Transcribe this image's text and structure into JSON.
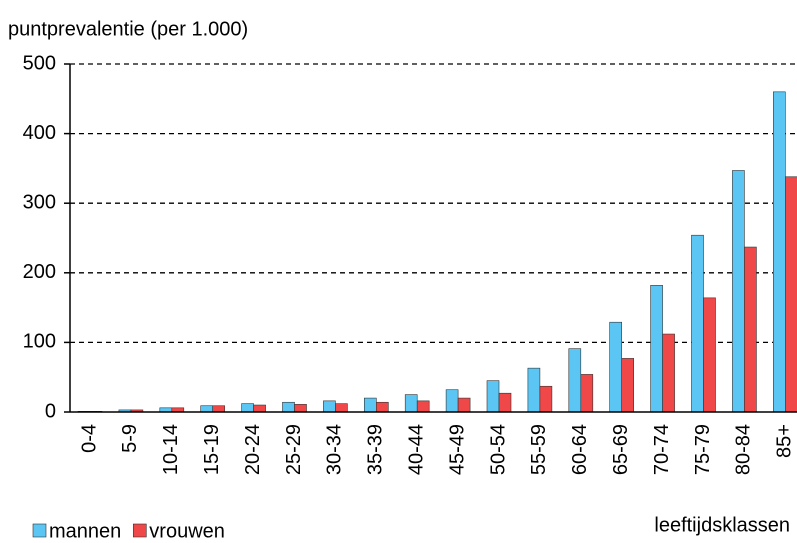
{
  "chart_data": {
    "type": "bar",
    "y_label": "puntprevalentie (per 1.000)",
    "x_label": "leeftijdsklassen",
    "categories": [
      "0-4",
      "5-9",
      "10-14",
      "15-19",
      "20-24",
      "25-29",
      "30-34",
      "35-39",
      "40-44",
      "45-49",
      "50-54",
      "55-59",
      "60-64",
      "65-69",
      "70-74",
      "75-79",
      "80-84",
      "85+"
    ],
    "series": [
      {
        "name": "mannen",
        "color": "#5bc6f4",
        "values": [
          1,
          3,
          6,
          9,
          12,
          14,
          16,
          20,
          25,
          32,
          45,
          63,
          91,
          129,
          182,
          254,
          347,
          460
        ]
      },
      {
        "name": "vrouwen",
        "color": "#f04848",
        "values": [
          1,
          3,
          6,
          9,
          10,
          11,
          12,
          14,
          16,
          20,
          27,
          37,
          54,
          77,
          112,
          164,
          237,
          338
        ]
      }
    ],
    "ylim": [
      0,
      500
    ],
    "yticks": [
      0,
      100,
      200,
      300,
      400,
      500
    ],
    "grid": true,
    "legend": "bottom-left"
  }
}
